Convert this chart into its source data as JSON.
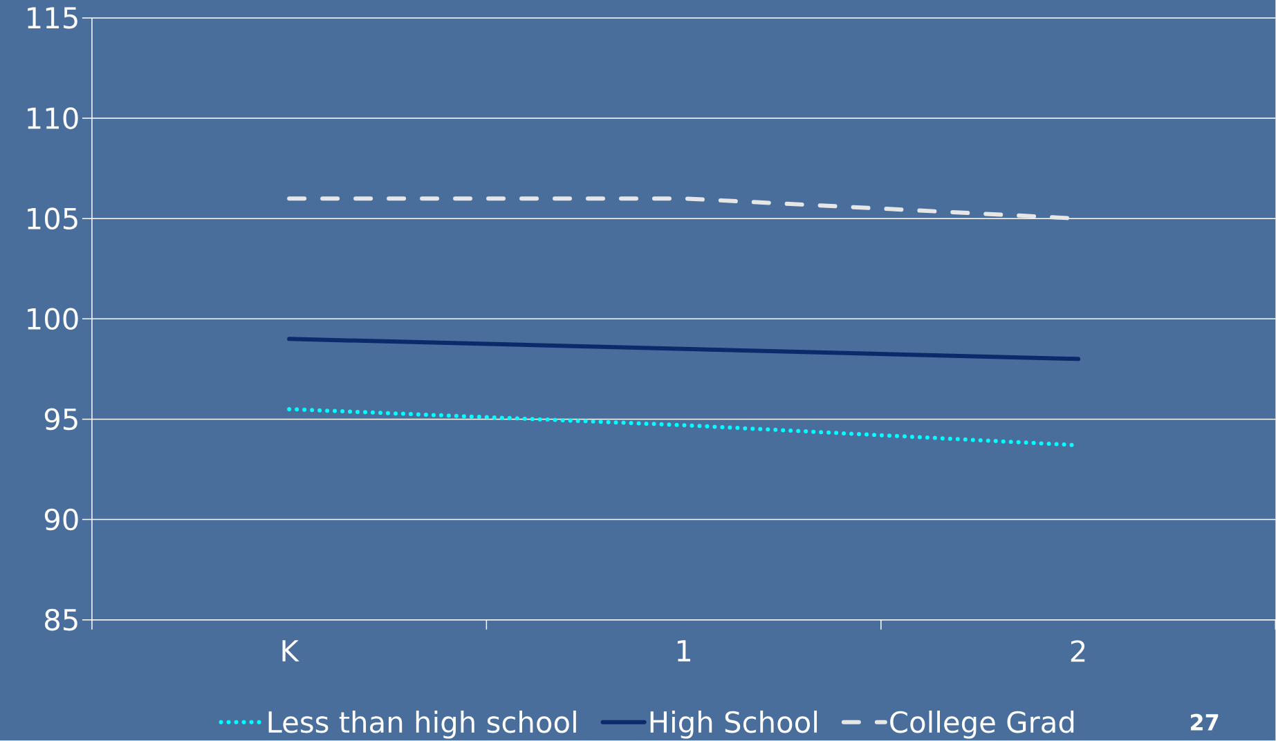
{
  "chart_data": {
    "type": "line",
    "categories": [
      "K",
      "1",
      "2"
    ],
    "series": [
      {
        "name": "Less than high school",
        "color": "#00ffff",
        "line_style": "dotted",
        "values": [
          95.5,
          94.7,
          93.7
        ]
      },
      {
        "name": "High School",
        "color": "#0b2a6b",
        "line_style": "solid",
        "values": [
          99,
          98.5,
          98
        ]
      },
      {
        "name": "College Grad",
        "color": "#e6e6e6",
        "line_style": "dashed",
        "values": [
          106,
          106,
          105
        ]
      }
    ],
    "ylim": [
      85,
      115
    ],
    "yticks": [
      85,
      90,
      95,
      100,
      105,
      110,
      115
    ],
    "grid": "y",
    "legend": "bottom",
    "annotations": [
      "27"
    ]
  }
}
